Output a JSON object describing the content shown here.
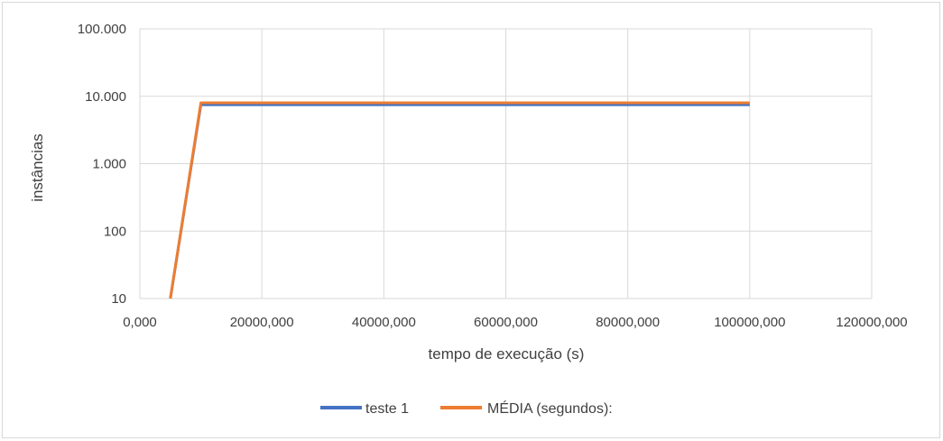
{
  "chart_data": {
    "type": "line",
    "title": "",
    "xlabel": "tempo de execução (s)",
    "ylabel": "instâncias",
    "xlim": [
      0,
      120000000
    ],
    "ylim": [
      10,
      100000
    ],
    "y_scale": "log",
    "grid": true,
    "legend_position": "bottom",
    "x_ticks": [
      {
        "value": 0,
        "label": "0,000"
      },
      {
        "value": 20000000,
        "label": "20000,000"
      },
      {
        "value": 40000000,
        "label": "40000,000"
      },
      {
        "value": 60000000,
        "label": "60000,000"
      },
      {
        "value": 80000000,
        "label": "80000,000"
      },
      {
        "value": 100000000,
        "label": "100000,000"
      },
      {
        "value": 120000000,
        "label": "120000,000"
      }
    ],
    "y_ticks": [
      {
        "value": 10,
        "label": "10"
      },
      {
        "value": 100,
        "label": "100"
      },
      {
        "value": 1000,
        "label": "1.000"
      },
      {
        "value": 10000,
        "label": "10.000"
      },
      {
        "value": 100000,
        "label": "100.000"
      }
    ],
    "series": [
      {
        "name": "teste 1",
        "color": "#4472C4",
        "points": [
          [
            5000000,
            10
          ],
          [
            10000000,
            7500
          ],
          [
            100000000,
            7500
          ]
        ]
      },
      {
        "name": "MÉDIA (segundos):",
        "color": "#ED7D31",
        "points": [
          [
            5000000,
            10
          ],
          [
            10000000,
            8000
          ],
          [
            100000000,
            8000
          ]
        ]
      }
    ]
  }
}
